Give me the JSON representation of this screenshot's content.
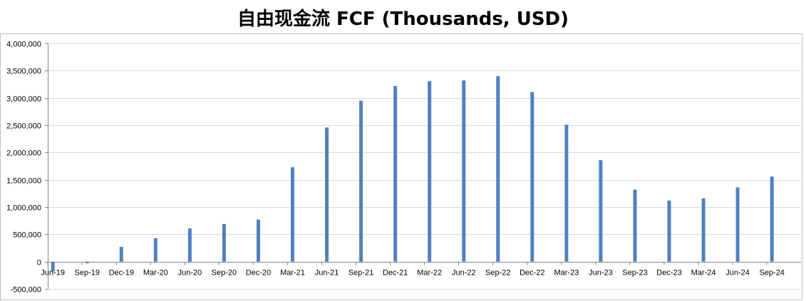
{
  "chart_data": {
    "type": "bar",
    "title": "自由现金流 FCF (Thousands, USD)",
    "xlabel": "",
    "ylabel": "",
    "categories": [
      "Jun-19",
      "Sep-19",
      "Dec-19",
      "Mar-20",
      "Jun-20",
      "Sep-20",
      "Dec-20",
      "Mar-21",
      "Jun-21",
      "Sep-21",
      "Dec-21",
      "Mar-22",
      "Jun-22",
      "Sep-22",
      "Dec-22",
      "Mar-23",
      "Jun-23",
      "Sep-23",
      "Dec-23",
      "Mar-24",
      "Jun-24",
      "Sep-24"
    ],
    "values": [
      -180000,
      -30000,
      270000,
      430000,
      610000,
      690000,
      770000,
      1730000,
      2460000,
      2950000,
      3220000,
      3310000,
      3320000,
      3400000,
      3110000,
      2510000,
      1860000,
      1320000,
      1120000,
      1160000,
      1360000,
      1560000
    ],
    "ylim": [
      -500000,
      4000000
    ],
    "yticks": [
      -500000,
      0,
      500000,
      1000000,
      1500000,
      2000000,
      2500000,
      3000000,
      3500000,
      4000000
    ],
    "ytick_labels": [
      "-500,000",
      "0",
      "500,000",
      "1,000,000",
      "1,500,000",
      "2,000,000",
      "2,500,000",
      "3,000,000",
      "3,500,000",
      "4,000,000"
    ],
    "grid": true,
    "legend": "none",
    "bar_color": "#4f81bd",
    "grid_color": "#d9d9d9"
  }
}
